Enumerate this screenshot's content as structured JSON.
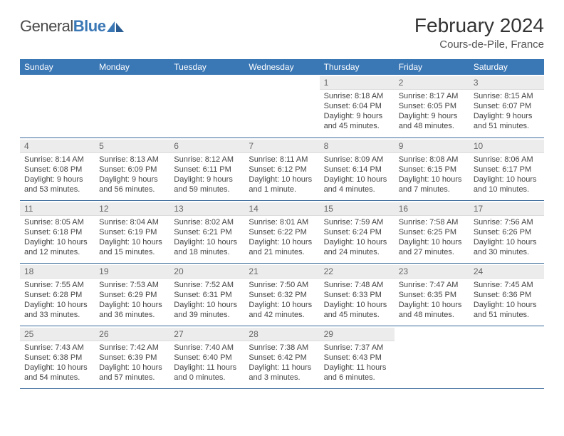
{
  "brand": {
    "part1": "General",
    "part2": "Blue"
  },
  "title": "February 2024",
  "location": "Cours-de-Pile, France",
  "headers": [
    "Sunday",
    "Monday",
    "Tuesday",
    "Wednesday",
    "Thursday",
    "Friday",
    "Saturday"
  ],
  "colors": {
    "header_bg": "#3a77b5",
    "header_fg": "#ffffff",
    "daynum_bg": "#ececec",
    "row_border": "#3a6a9a",
    "text": "#444444",
    "logo_blue": "#3a77b5"
  },
  "typography": {
    "title_fontsize": 28,
    "subtitle_fontsize": 15,
    "header_fontsize": 12,
    "cell_fontsize": 11,
    "daynum_fontsize": 12
  },
  "weeks": [
    [
      null,
      null,
      null,
      null,
      {
        "n": "1",
        "sunrise": "8:18 AM",
        "sunset": "6:04 PM",
        "daylight": "9 hours and 45 minutes."
      },
      {
        "n": "2",
        "sunrise": "8:17 AM",
        "sunset": "6:05 PM",
        "daylight": "9 hours and 48 minutes."
      },
      {
        "n": "3",
        "sunrise": "8:15 AM",
        "sunset": "6:07 PM",
        "daylight": "9 hours and 51 minutes."
      }
    ],
    [
      {
        "n": "4",
        "sunrise": "8:14 AM",
        "sunset": "6:08 PM",
        "daylight": "9 hours and 53 minutes."
      },
      {
        "n": "5",
        "sunrise": "8:13 AM",
        "sunset": "6:09 PM",
        "daylight": "9 hours and 56 minutes."
      },
      {
        "n": "6",
        "sunrise": "8:12 AM",
        "sunset": "6:11 PM",
        "daylight": "9 hours and 59 minutes."
      },
      {
        "n": "7",
        "sunrise": "8:11 AM",
        "sunset": "6:12 PM",
        "daylight": "10 hours and 1 minute."
      },
      {
        "n": "8",
        "sunrise": "8:09 AM",
        "sunset": "6:14 PM",
        "daylight": "10 hours and 4 minutes."
      },
      {
        "n": "9",
        "sunrise": "8:08 AM",
        "sunset": "6:15 PM",
        "daylight": "10 hours and 7 minutes."
      },
      {
        "n": "10",
        "sunrise": "8:06 AM",
        "sunset": "6:17 PM",
        "daylight": "10 hours and 10 minutes."
      }
    ],
    [
      {
        "n": "11",
        "sunrise": "8:05 AM",
        "sunset": "6:18 PM",
        "daylight": "10 hours and 12 minutes."
      },
      {
        "n": "12",
        "sunrise": "8:04 AM",
        "sunset": "6:19 PM",
        "daylight": "10 hours and 15 minutes."
      },
      {
        "n": "13",
        "sunrise": "8:02 AM",
        "sunset": "6:21 PM",
        "daylight": "10 hours and 18 minutes."
      },
      {
        "n": "14",
        "sunrise": "8:01 AM",
        "sunset": "6:22 PM",
        "daylight": "10 hours and 21 minutes."
      },
      {
        "n": "15",
        "sunrise": "7:59 AM",
        "sunset": "6:24 PM",
        "daylight": "10 hours and 24 minutes."
      },
      {
        "n": "16",
        "sunrise": "7:58 AM",
        "sunset": "6:25 PM",
        "daylight": "10 hours and 27 minutes."
      },
      {
        "n": "17",
        "sunrise": "7:56 AM",
        "sunset": "6:26 PM",
        "daylight": "10 hours and 30 minutes."
      }
    ],
    [
      {
        "n": "18",
        "sunrise": "7:55 AM",
        "sunset": "6:28 PM",
        "daylight": "10 hours and 33 minutes."
      },
      {
        "n": "19",
        "sunrise": "7:53 AM",
        "sunset": "6:29 PM",
        "daylight": "10 hours and 36 minutes."
      },
      {
        "n": "20",
        "sunrise": "7:52 AM",
        "sunset": "6:31 PM",
        "daylight": "10 hours and 39 minutes."
      },
      {
        "n": "21",
        "sunrise": "7:50 AM",
        "sunset": "6:32 PM",
        "daylight": "10 hours and 42 minutes."
      },
      {
        "n": "22",
        "sunrise": "7:48 AM",
        "sunset": "6:33 PM",
        "daylight": "10 hours and 45 minutes."
      },
      {
        "n": "23",
        "sunrise": "7:47 AM",
        "sunset": "6:35 PM",
        "daylight": "10 hours and 48 minutes."
      },
      {
        "n": "24",
        "sunrise": "7:45 AM",
        "sunset": "6:36 PM",
        "daylight": "10 hours and 51 minutes."
      }
    ],
    [
      {
        "n": "25",
        "sunrise": "7:43 AM",
        "sunset": "6:38 PM",
        "daylight": "10 hours and 54 minutes."
      },
      {
        "n": "26",
        "sunrise": "7:42 AM",
        "sunset": "6:39 PM",
        "daylight": "10 hours and 57 minutes."
      },
      {
        "n": "27",
        "sunrise": "7:40 AM",
        "sunset": "6:40 PM",
        "daylight": "11 hours and 0 minutes."
      },
      {
        "n": "28",
        "sunrise": "7:38 AM",
        "sunset": "6:42 PM",
        "daylight": "11 hours and 3 minutes."
      },
      {
        "n": "29",
        "sunrise": "7:37 AM",
        "sunset": "6:43 PM",
        "daylight": "11 hours and 6 minutes."
      },
      null,
      null
    ]
  ],
  "labels": {
    "sunrise": "Sunrise:",
    "sunset": "Sunset:",
    "daylight": "Daylight:"
  }
}
